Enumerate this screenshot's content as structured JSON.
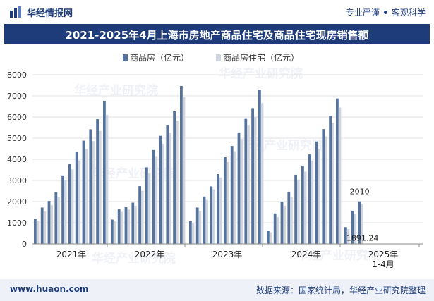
{
  "header": {
    "brand": "华经情报网",
    "slogan_left": "专业严谨",
    "slogan_right": "客观科学"
  },
  "footer": {
    "site": "www.huaon.com",
    "source": "数据来源：国家统计局，华经产业研究院整理"
  },
  "watermark": "华经产业研究院",
  "colors": {
    "brand": "#1f3c7a",
    "series1": "#56739d",
    "series2": "#cfd6e0"
  },
  "chart_data": {
    "type": "bar",
    "title": "2021-2025年4月上海市房地产商品住宅及商品住宅现房销售额",
    "xlabel": "",
    "ylabel": "",
    "ylim": [
      0,
      8000
    ],
    "yticks": [
      0,
      1000,
      2000,
      3000,
      4000,
      5000,
      6000,
      7000,
      8000
    ],
    "grid": true,
    "legend": "top",
    "group_labels": [
      "2021年",
      "2022年",
      "2023年",
      "2024年",
      "2025年\n1-4月"
    ],
    "series": [
      {
        "name": "商品房（亿元）",
        "groups": [
          [
            1180,
            1720,
            2030,
            2440,
            3240,
            3780,
            4340,
            4880,
            5420,
            5900,
            6770
          ],
          [
            1150,
            1640,
            1740,
            1950,
            2730,
            3620,
            4440,
            5110,
            5610,
            6270,
            7470
          ],
          [
            1070,
            1720,
            2240,
            2720,
            3300,
            4100,
            4630,
            5270,
            5910,
            6420,
            7290
          ],
          [
            610,
            1440,
            2000,
            2470,
            3270,
            3700,
            4230,
            4840,
            5430,
            6060,
            6880
          ],
          [
            790,
            1570,
            2010
          ]
        ]
      },
      {
        "name": "商品房住宅（亿元）",
        "groups": [
          [
            1100,
            1530,
            1830,
            2230,
            3000,
            3520,
            3950,
            4490,
            4860,
            5340,
            6100
          ],
          [
            1070,
            1520,
            1620,
            1800,
            2510,
            3340,
            4120,
            4730,
            5260,
            5830,
            6950
          ],
          [
            970,
            1560,
            2080,
            2580,
            3140,
            3870,
            4380,
            4960,
            5610,
            6000,
            6660
          ],
          [
            550,
            1270,
            1800,
            2210,
            3040,
            3420,
            3940,
            4490,
            5080,
            5720,
            6450
          ],
          [
            700,
            1420,
            1891.24
          ]
        ]
      }
    ],
    "data_labels": [
      {
        "group": 4,
        "bar": 2,
        "series": 0,
        "text": "2010"
      },
      {
        "group": 4,
        "bar": 2,
        "series": 1,
        "text": "1891.24"
      }
    ]
  }
}
